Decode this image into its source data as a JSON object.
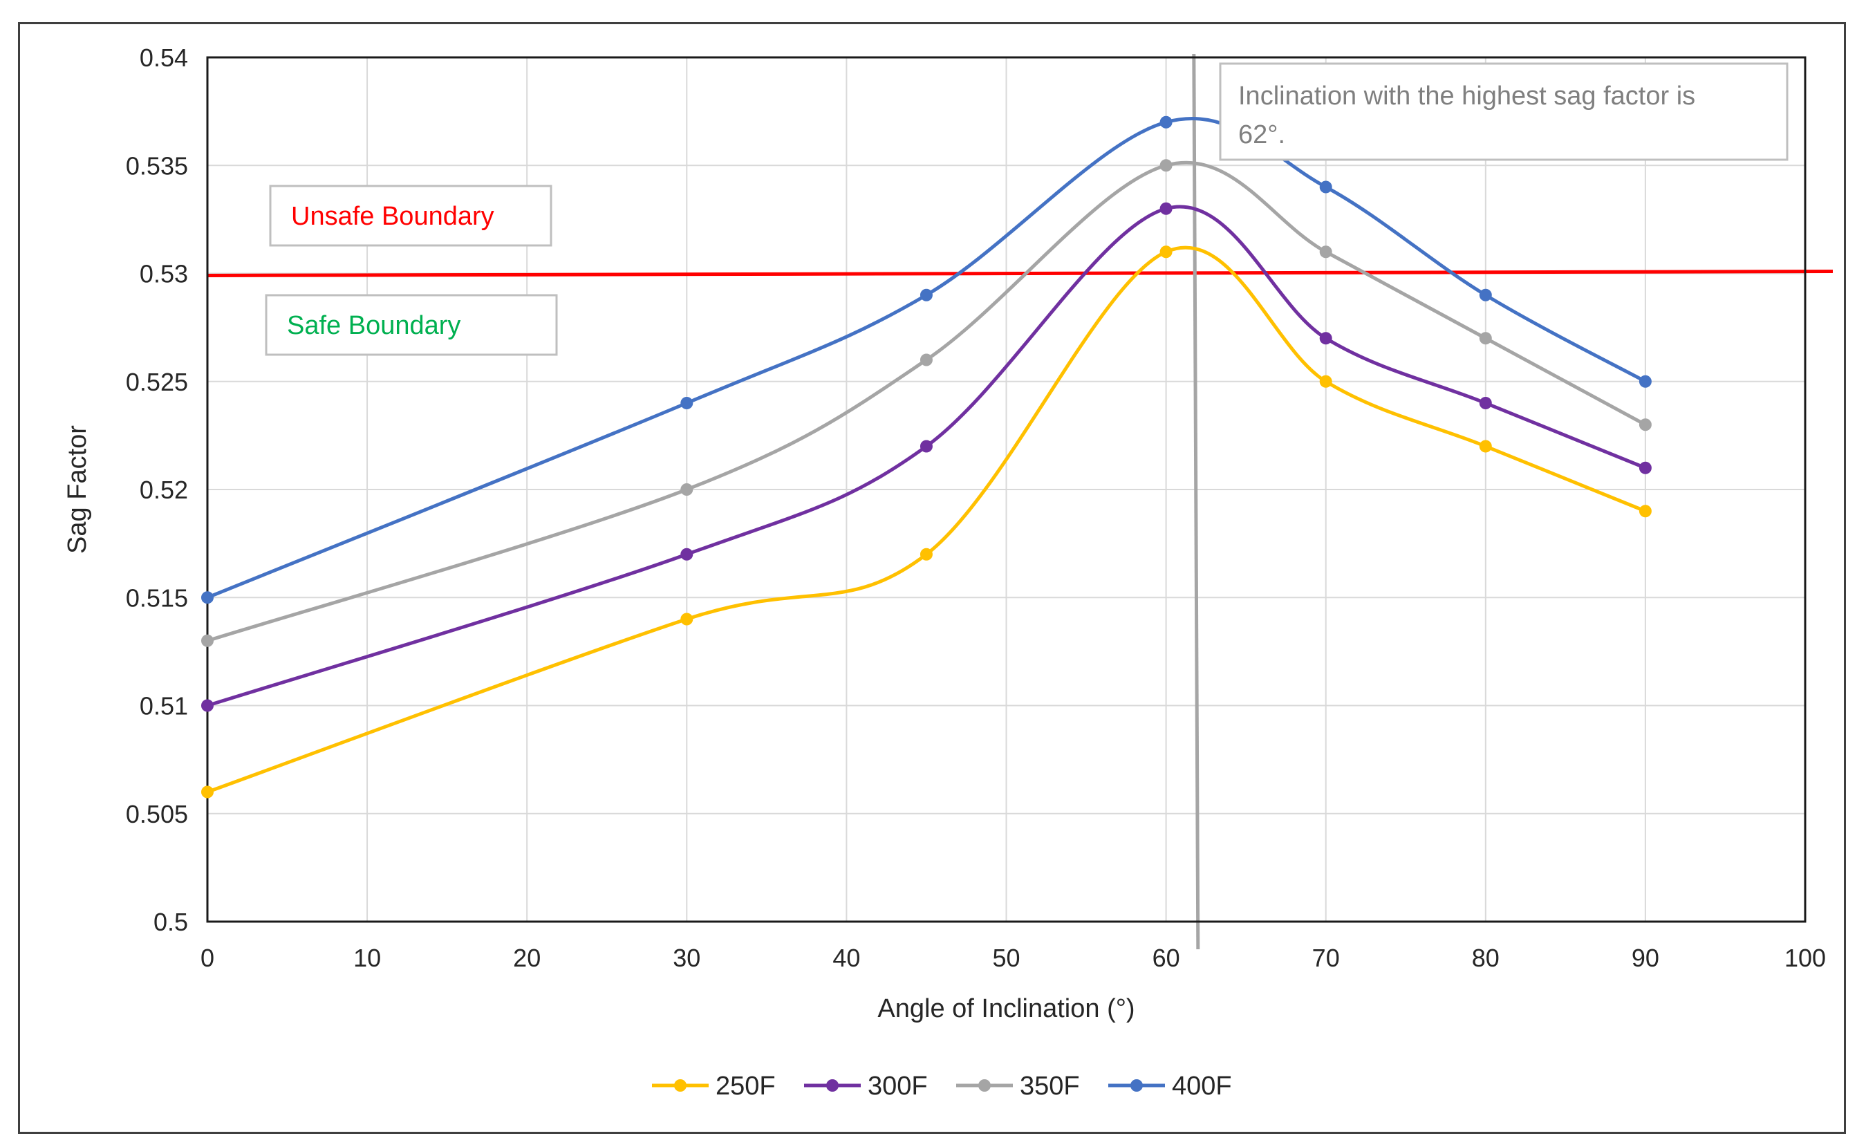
{
  "chart_data": {
    "type": "line",
    "title": "",
    "xlabel": "Angle of Inclination (°)",
    "ylabel": "Sag Factor",
    "xlim": [
      0,
      100
    ],
    "ylim": [
      0.5,
      0.54
    ],
    "x_ticks": [
      "0",
      "10",
      "20",
      "30",
      "40",
      "50",
      "60",
      "70",
      "80",
      "90",
      "100"
    ],
    "y_ticks": [
      "0.5",
      "0.505",
      "0.51",
      "0.515",
      "0.52",
      "0.525",
      "0.53",
      "0.535",
      "0.54"
    ],
    "grid": true,
    "legend_position": "bottom",
    "x": [
      0,
      30,
      45,
      60,
      70,
      80,
      90
    ],
    "series": [
      {
        "name": "250F",
        "color": "#FFC000",
        "values": [
          0.506,
          0.514,
          0.517,
          0.531,
          0.525,
          0.522,
          0.519
        ]
      },
      {
        "name": "300F",
        "color": "#7030A0",
        "values": [
          0.51,
          0.517,
          0.522,
          0.533,
          0.527,
          0.524,
          0.521
        ]
      },
      {
        "name": "350F",
        "color": "#A5A5A5",
        "values": [
          0.513,
          0.52,
          0.526,
          0.535,
          0.531,
          0.527,
          0.523
        ]
      },
      {
        "name": "400F",
        "color": "#4472C4",
        "values": [
          0.515,
          0.524,
          0.529,
          0.537,
          0.534,
          0.529,
          0.525
        ]
      }
    ],
    "threshold": {
      "value": 0.53,
      "color": "#FF0000",
      "x_start": 0,
      "x_end": 100
    },
    "marker_line": {
      "x": 62,
      "color": "#A5A5A5"
    },
    "annotations": [
      {
        "id": "note",
        "text": "Inclination with the highest sag factor is 62°.",
        "color": "#7f7f7f"
      },
      {
        "id": "unsafe",
        "text": "Unsafe Boundary",
        "color": "#FF0000"
      },
      {
        "id": "safe",
        "text": "Safe Boundary",
        "color": "#00B050"
      }
    ]
  }
}
